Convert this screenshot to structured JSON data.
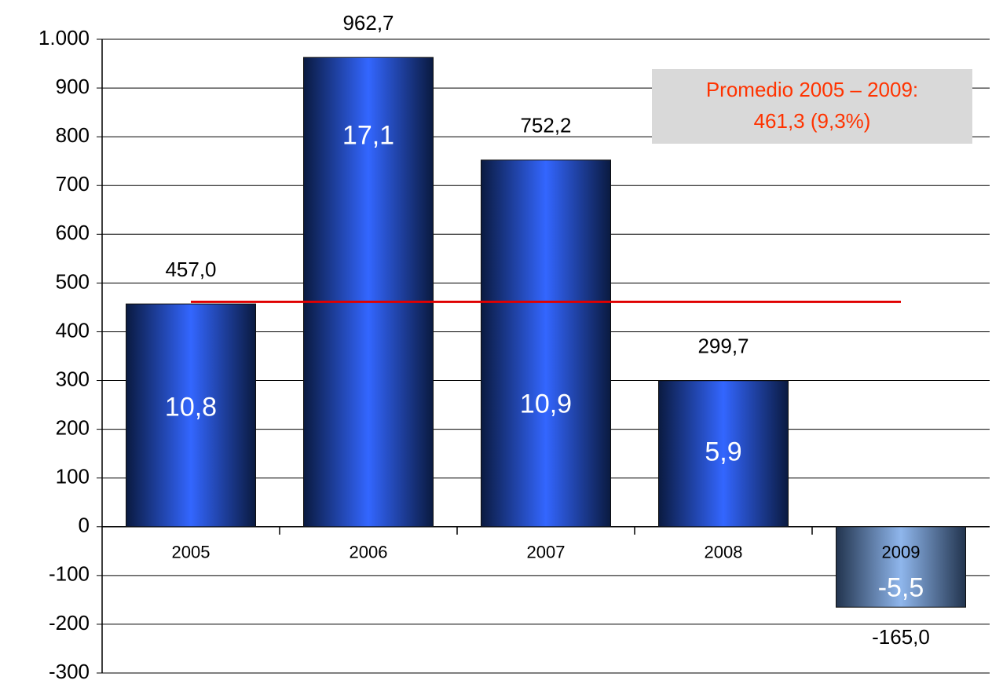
{
  "chart_data": {
    "type": "bar",
    "categories": [
      "2005",
      "2006",
      "2007",
      "2008",
      "2009"
    ],
    "values": [
      457.0,
      962.7,
      752.2,
      299.7,
      -165.0
    ],
    "value_labels": [
      "457,0",
      "962,7",
      "752,2",
      "299,7",
      "-165,0"
    ],
    "rates": {
      "values": [
        10.8,
        17.1,
        10.9,
        5.9,
        -5.5
      ],
      "value_labels": [
        "10,8",
        "17,1",
        "10,9",
        "5,9",
        "-5,5"
      ]
    },
    "color": "#3366ff",
    "negative_color": "#8fb6ec",
    "average": 461.3,
    "average_color": "#e00000",
    "annotation": [
      "Promedio 2005 – 2009:",
      "461,3 (9,3%)"
    ],
    "ylim": [
      -300,
      1000
    ],
    "yticks": [
      {
        "value": 1000,
        "label": "1.000"
      },
      900,
      800,
      700,
      600,
      500,
      400,
      300,
      200,
      100,
      0,
      -100,
      -200,
      -300
    ],
    "grid": true
  }
}
